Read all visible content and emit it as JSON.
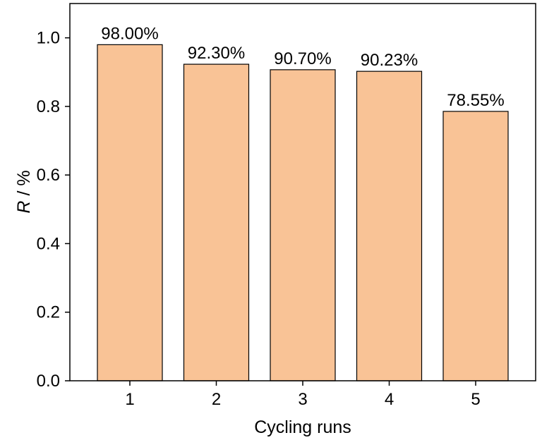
{
  "chart_data": {
    "type": "bar",
    "categories": [
      "1",
      "2",
      "3",
      "4",
      "5"
    ],
    "values": [
      0.98,
      0.923,
      0.907,
      0.9023,
      0.7855
    ],
    "data_labels": [
      "98.00%",
      "92.30%",
      "90.70%",
      "90.23%",
      "78.55%"
    ],
    "xlabel": "Cycling runs",
    "ylabel_italic": "R",
    "ylabel_rest": " / %",
    "ylim": [
      0,
      1.1
    ],
    "yticks": [
      0.0,
      0.2,
      0.4,
      0.6,
      0.8,
      1.0
    ],
    "ytick_labels": [
      "0.0",
      "0.2",
      "0.4",
      "0.6",
      "0.8",
      "1.0"
    ],
    "grid": false,
    "legend": "none",
    "colors": {
      "bar_fill": "#f9c396",
      "bar_stroke": "#000000"
    }
  }
}
